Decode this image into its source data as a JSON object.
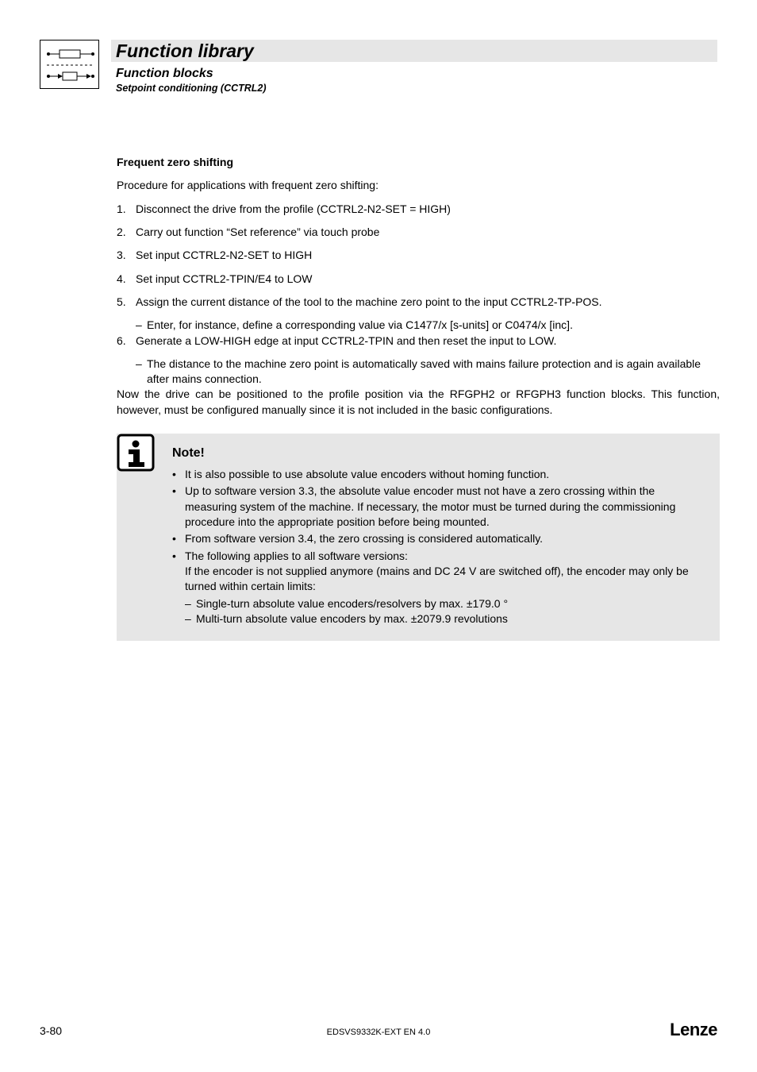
{
  "header": {
    "title": "Function library",
    "subtitle": "Function blocks",
    "subsubtitle": "Setpoint conditioning (CCTRL2)"
  },
  "section": {
    "heading": "Frequent zero shifting",
    "intro": "Procedure for applications with frequent zero shifting:",
    "steps": [
      {
        "n": "1.",
        "t": "Disconnect the drive from the profile (CCTRL2-N2-SET = HIGH)"
      },
      {
        "n": "2.",
        "t": "Carry out function “Set reference” via touch probe"
      },
      {
        "n": "3.",
        "t": "Set input CCTRL2-N2-SET to HIGH"
      },
      {
        "n": "4.",
        "t": "Set input CCTRL2-TPIN/E4 to LOW"
      },
      {
        "n": "5.",
        "t": "Assign the current distance of the tool to the machine zero point to the input CCTRL2-TP-POS.",
        "subs": [
          "Enter, for instance, define a corresponding value via C1477/x [s-units] or C0474/x [inc]."
        ]
      },
      {
        "n": "6.",
        "t": "Generate a LOW-HIGH edge at input CCTRL2-TPIN and then reset the input to LOW.",
        "subs": [
          "The distance to the machine zero point is automatically saved with mains failure protection and is again available after mains connection."
        ]
      }
    ],
    "outro": "Now the drive can be positioned to the profile position via the RFGPH2 or RFGPH3 function blocks. This function, however, must be configured manually since it is not included in the basic configurations."
  },
  "note": {
    "title": "Note!",
    "items": [
      {
        "t": "It is also possible to use absolute value encoders without homing function."
      },
      {
        "t": "Up to software version 3.3, the absolute value encoder must not have a zero crossing within the measuring system of the machine. If necessary, the motor must be turned during the commissioning procedure into the appropriate position before being mounted."
      },
      {
        "t": "From software version 3.4, the zero crossing is considered automatically."
      },
      {
        "t": "The following applies to all software versions:",
        "cont": "If the encoder is not supplied anymore (mains and DC 24 V are switched off), the encoder may only be turned within certain limits:",
        "subs": [
          "Single-turn absolute value encoders/resolvers by max. ±179.0 °",
          "Multi-turn absolute value encoders by max. ±2079.9 revolutions"
        ]
      }
    ]
  },
  "footer": {
    "page": "3-80",
    "doc": "EDSVS9332K-EXT EN 4.0",
    "brand": "Lenze"
  },
  "colors": {
    "band": "#e6e6e6",
    "text": "#000000"
  }
}
